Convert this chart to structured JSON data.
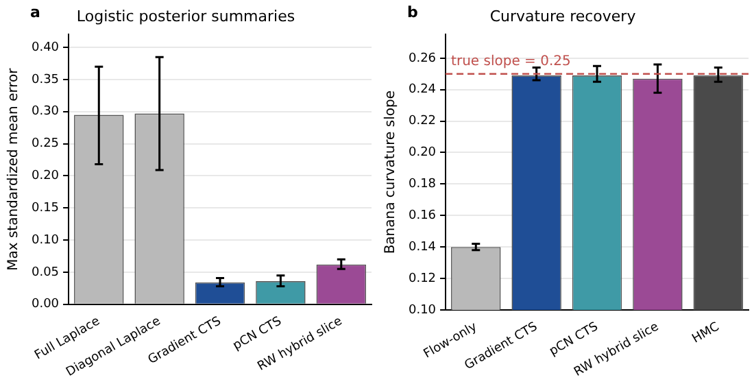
{
  "chart_data": [
    {
      "type": "bar",
      "title": "Logistic posterior summaries",
      "ylabel": "Max standardized mean error",
      "annotations": [
        "a"
      ],
      "categories": [
        "Full Laplace",
        "Diagonal Laplace",
        "Gradient CTS",
        "pCN CTS",
        "RW hybrid slice"
      ],
      "values": [
        0.295,
        0.297,
        0.034,
        0.036,
        0.062
      ],
      "errors": [
        [
          0.218,
          0.37
        ],
        [
          0.209,
          0.385
        ],
        [
          0.028,
          0.041
        ],
        [
          0.028,
          0.045
        ],
        [
          0.055,
          0.07
        ]
      ],
      "colors": [
        "#b9b9b9",
        "#b9b9b9",
        "#1f4e96",
        "#3f9aa6",
        "#9b4a95"
      ],
      "ylim": [
        0,
        0.42
      ],
      "yticks": [
        {
          "value": 0,
          "label": "0.00"
        },
        {
          "value": 0.05,
          "label": "0.05"
        },
        {
          "value": 0.1,
          "label": "0.10"
        },
        {
          "value": 0.15,
          "label": "0.15"
        },
        {
          "value": 0.2,
          "label": "0.20"
        },
        {
          "value": 0.25,
          "label": "0.25"
        },
        {
          "value": 0.3,
          "label": "0.30"
        },
        {
          "value": 0.35,
          "label": "0.35"
        },
        {
          "value": 0.4,
          "label": "0.40"
        }
      ],
      "grid": "y",
      "legend": false
    },
    {
      "type": "bar",
      "title": "Curvature recovery",
      "ylabel": "Banana curvature slope",
      "annotations": [
        "b"
      ],
      "categories": [
        "Flow-only",
        "Gradient CTS",
        "pCN CTS",
        "RW hybrid slice",
        "HMC"
      ],
      "values": [
        0.14,
        0.249,
        0.249,
        0.247,
        0.249
      ],
      "errors": [
        [
          0.138,
          0.142
        ],
        [
          0.246,
          0.254
        ],
        [
          0.245,
          0.255
        ],
        [
          0.238,
          0.256
        ],
        [
          0.245,
          0.254
        ]
      ],
      "colors": [
        "#b9b9b9",
        "#1f4e96",
        "#3f9aa6",
        "#9b4a95",
        "#4a4a4a"
      ],
      "ylim": [
        0.1,
        0.275
      ],
      "yticks": [
        {
          "value": 0.1,
          "label": "0.10"
        },
        {
          "value": 0.12,
          "label": "0.12"
        },
        {
          "value": 0.14,
          "label": "0.14"
        },
        {
          "value": 0.16,
          "label": "0.16"
        },
        {
          "value": 0.18,
          "label": "0.18"
        },
        {
          "value": 0.2,
          "label": "0.20"
        },
        {
          "value": 0.22,
          "label": "0.22"
        },
        {
          "value": 0.24,
          "label": "0.24"
        },
        {
          "value": 0.26,
          "label": "0.26"
        }
      ],
      "ref_lines": [
        {
          "axis": "y",
          "value": 0.25,
          "label": "true slope = 0.25",
          "color": "#c0504d",
          "line_style": "dashed"
        }
      ],
      "grid": "y",
      "legend": false
    }
  ]
}
